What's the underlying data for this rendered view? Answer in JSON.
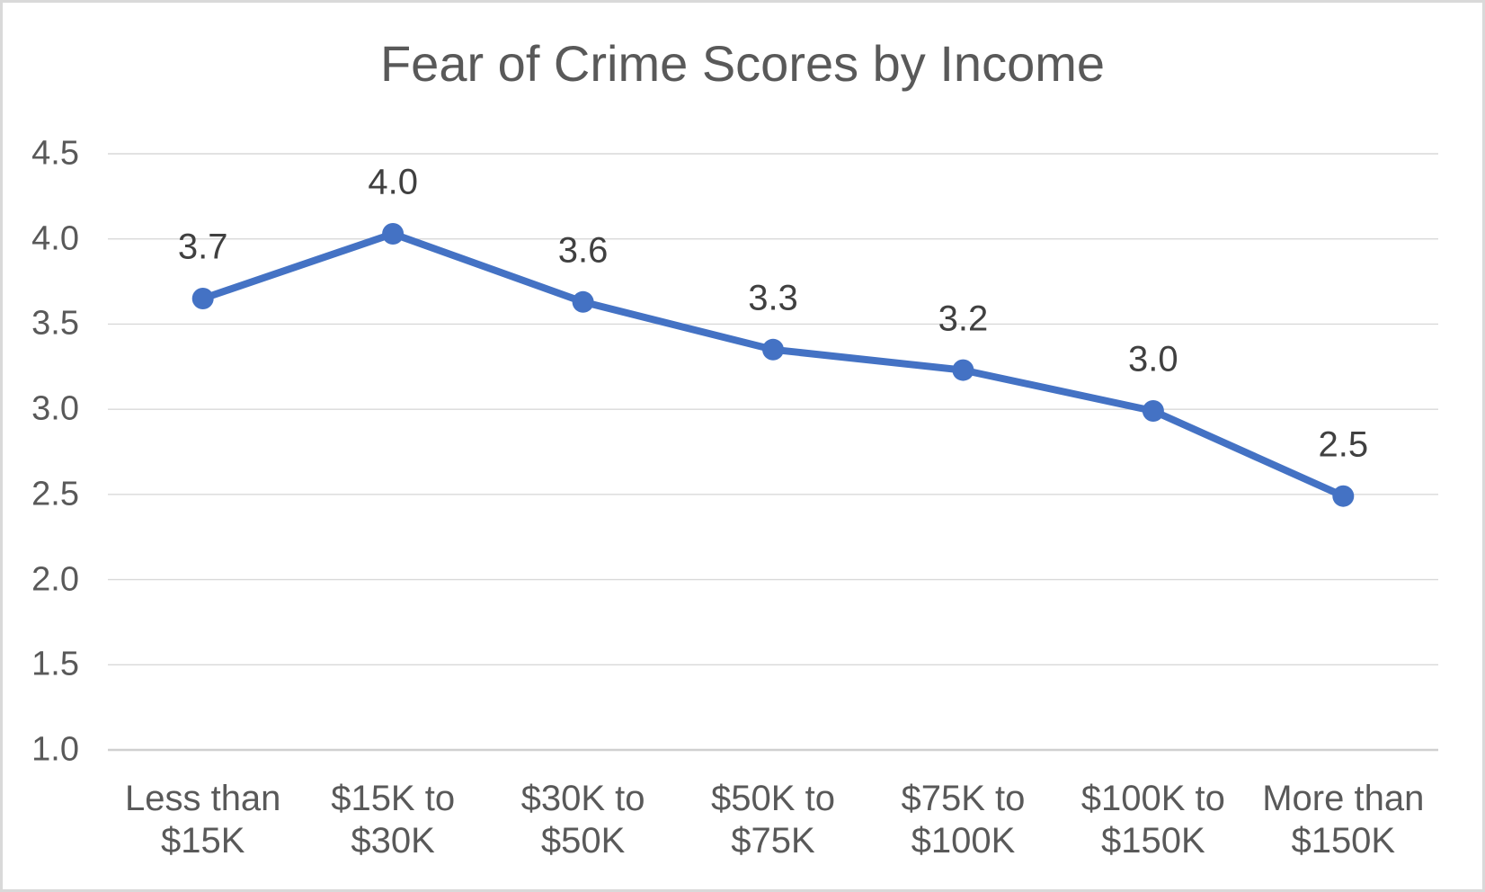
{
  "chart_data": {
    "type": "line",
    "title": "Fear of Crime Scores by Income",
    "categories": [
      "Less than $15K",
      "$15K to $30K",
      "$30K to $50K",
      "$50K to $75K",
      "$75K to $100K",
      "$100K to $150K",
      "More than $150K"
    ],
    "category_lines": [
      [
        "Less than",
        "$15K"
      ],
      [
        "$15K to",
        "$30K"
      ],
      [
        "$30K to",
        "$50K"
      ],
      [
        "$50K to",
        "$75K"
      ],
      [
        "$75K to",
        "$100K"
      ],
      [
        "$100K to",
        "$150K"
      ],
      [
        "More than",
        "$150K"
      ]
    ],
    "values": [
      3.7,
      4.0,
      3.6,
      3.3,
      3.2,
      3.0,
      2.5
    ],
    "data_labels": [
      "3.7",
      "4.0",
      "3.6",
      "3.3",
      "3.2",
      "3.0",
      "2.5"
    ],
    "plotted_values": [
      3.65,
      4.03,
      3.63,
      3.35,
      3.23,
      2.99,
      2.49
    ],
    "xlabel": "",
    "ylabel": "",
    "ylim": [
      1.0,
      4.5
    ],
    "ytick_step": 0.5,
    "ytick_labels": [
      "1.0",
      "1.5",
      "2.0",
      "2.5",
      "3.0",
      "3.5",
      "4.0",
      "4.5"
    ],
    "grid": true,
    "legend": false,
    "marker": "circle",
    "colors": {
      "line": "#4472C4",
      "marker": "#4472C4",
      "gridline": "#D9D9D9",
      "axis_line": "#D0D0D0",
      "title_text": "#595959",
      "tick_text": "#595959",
      "data_label_text": "#404040",
      "background": "#FFFFFF",
      "border": "#D9D9D9"
    }
  }
}
